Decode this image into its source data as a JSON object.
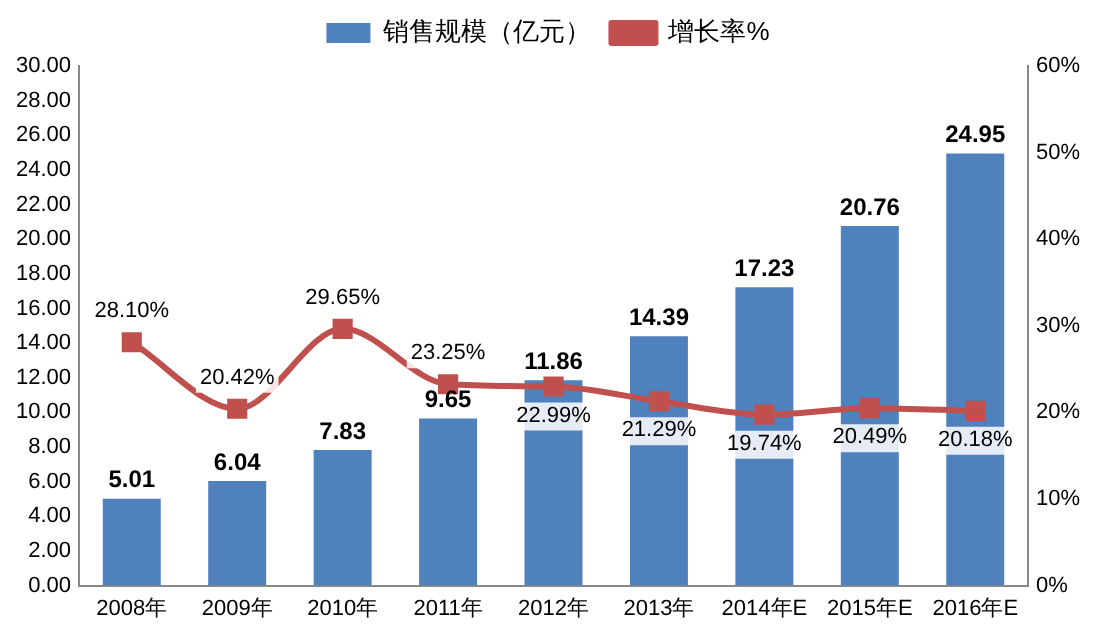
{
  "chart_data": {
    "type": "bar",
    "categories": [
      "2008年",
      "2009年",
      "2010年",
      "2011年",
      "2012年",
      "2013年",
      "2014年E",
      "2015年E",
      "2016年E"
    ],
    "series": [
      {
        "name": "销售规模（亿元）",
        "color": "#4f81bd",
        "values": [
          5.01,
          6.04,
          7.83,
          9.65,
          11.86,
          14.39,
          17.23,
          20.76,
          24.95
        ],
        "value_labels": [
          "5.01",
          "6.04",
          "7.83",
          "9.65",
          "11.86",
          "14.39",
          "17.23",
          "20.76",
          "24.95"
        ]
      },
      {
        "name": "增长率%",
        "type": "line",
        "axis": "y2",
        "color": "#c0504d",
        "marker": "square",
        "values": [
          28.1,
          20.42,
          29.65,
          23.25,
          22.99,
          21.29,
          19.74,
          20.49,
          20.18
        ],
        "value_labels": [
          "28.10%",
          "20.42%",
          "29.65%",
          "23.25%",
          "22.99%",
          "21.29%",
          "19.74%",
          "20.49%",
          "20.18%"
        ]
      }
    ],
    "ylim": [
      0,
      30
    ],
    "yticks": [
      {
        "value": 0,
        "label": "0.00"
      },
      {
        "value": 2,
        "label": "2.00"
      },
      {
        "value": 4,
        "label": "4.00"
      },
      {
        "value": 6,
        "label": "6.00"
      },
      {
        "value": 8,
        "label": "8.00"
      },
      {
        "value": 10,
        "label": "10.00"
      },
      {
        "value": 12,
        "label": "12.00"
      },
      {
        "value": 14,
        "label": "14.00"
      },
      {
        "value": 16,
        "label": "16.00"
      },
      {
        "value": 18,
        "label": "18.00"
      },
      {
        "value": 20,
        "label": "20.00"
      },
      {
        "value": 22,
        "label": "22.00"
      },
      {
        "value": 24,
        "label": "24.00"
      },
      {
        "value": 26,
        "label": "26.00"
      },
      {
        "value": 28,
        "label": "28.00"
      },
      {
        "value": 30,
        "label": "30.00"
      }
    ],
    "y2lim": [
      0,
      60
    ],
    "y2ticks": [
      {
        "value": 0,
        "label": "0%"
      },
      {
        "value": 10,
        "label": "10%"
      },
      {
        "value": 20,
        "label": "20%"
      },
      {
        "value": 30,
        "label": "30%"
      },
      {
        "value": 40,
        "label": "40%"
      },
      {
        "value": 50,
        "label": "50%"
      },
      {
        "value": 60,
        "label": "60%"
      }
    ],
    "legend": "top",
    "grid": false
  }
}
